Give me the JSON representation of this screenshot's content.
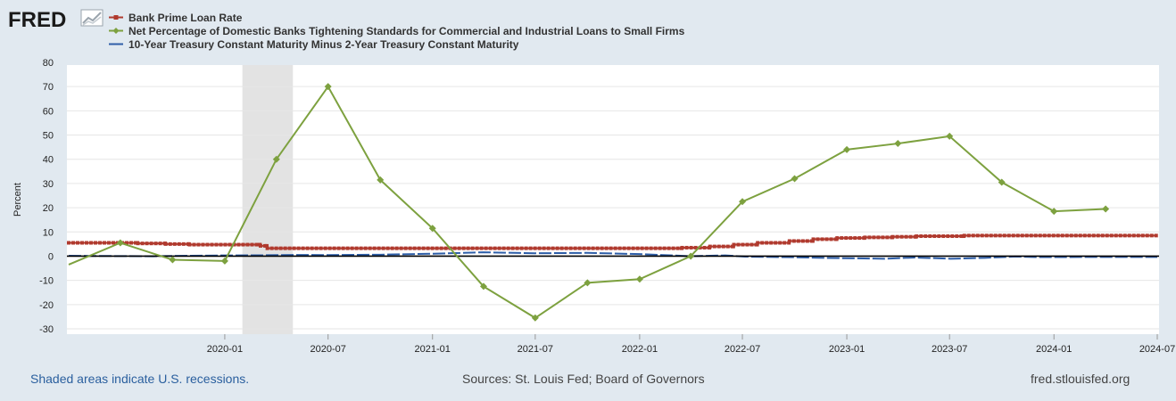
{
  "logo": {
    "text": "FRED"
  },
  "chart_data": {
    "type": "line",
    "title": "",
    "xlabel": "",
    "ylabel": "Percent",
    "ylim": [
      -30,
      80
    ],
    "yticks": [
      -30,
      -20,
      -10,
      0,
      10,
      20,
      30,
      40,
      50,
      60,
      70,
      80
    ],
    "x_range": [
      "2019-04-01",
      "2024-07-01"
    ],
    "xticks": [
      {
        "date": "2020-01-01",
        "label": "2020-01"
      },
      {
        "date": "2020-07-01",
        "label": "2020-07"
      },
      {
        "date": "2021-01-01",
        "label": "2021-01"
      },
      {
        "date": "2021-07-01",
        "label": "2021-07"
      },
      {
        "date": "2022-01-01",
        "label": "2022-01"
      },
      {
        "date": "2022-07-01",
        "label": "2022-07"
      },
      {
        "date": "2023-01-01",
        "label": "2023-01"
      },
      {
        "date": "2023-07-01",
        "label": "2023-07"
      },
      {
        "date": "2024-01-01",
        "label": "2024-01"
      },
      {
        "date": "2024-07-01",
        "label": "2024-07"
      }
    ],
    "recessions": [
      {
        "start": "2020-02-01",
        "end": "2020-04-30"
      }
    ],
    "zero_line": true,
    "series": [
      {
        "name": "Bank Prime Loan Rate",
        "color": "#b03a2e",
        "marker": "square",
        "points": [
          [
            "2019-04-01",
            5.5
          ],
          [
            "2019-07-31",
            5.5
          ],
          [
            "2019-08-01",
            5.25
          ],
          [
            "2019-09-18",
            5.25
          ],
          [
            "2019-09-19",
            5.0
          ],
          [
            "2019-10-30",
            5.0
          ],
          [
            "2019-10-31",
            4.75
          ],
          [
            "2020-03-03",
            4.75
          ],
          [
            "2020-03-04",
            4.25
          ],
          [
            "2020-03-15",
            4.25
          ],
          [
            "2020-03-16",
            3.25
          ],
          [
            "2022-03-16",
            3.25
          ],
          [
            "2022-03-17",
            3.5
          ],
          [
            "2022-05-04",
            3.5
          ],
          [
            "2022-05-05",
            4.0
          ],
          [
            "2022-06-15",
            4.0
          ],
          [
            "2022-06-16",
            4.75
          ],
          [
            "2022-07-27",
            4.75
          ],
          [
            "2022-07-28",
            5.5
          ],
          [
            "2022-09-21",
            5.5
          ],
          [
            "2022-09-22",
            6.25
          ],
          [
            "2022-11-02",
            6.25
          ],
          [
            "2022-11-03",
            7.0
          ],
          [
            "2022-12-14",
            7.0
          ],
          [
            "2022-12-15",
            7.5
          ],
          [
            "2023-02-01",
            7.5
          ],
          [
            "2023-02-02",
            7.75
          ],
          [
            "2023-03-22",
            7.75
          ],
          [
            "2023-03-23",
            8.0
          ],
          [
            "2023-05-03",
            8.0
          ],
          [
            "2023-05-04",
            8.25
          ],
          [
            "2023-07-26",
            8.25
          ],
          [
            "2023-07-27",
            8.5
          ],
          [
            "2024-07-01",
            8.5
          ]
        ]
      },
      {
        "name": "Net Percentage of Domestic Banks Tightening Standards for Commercial and Industrial Loans to Small Firms",
        "color": "#7da13f",
        "marker": "diamond",
        "points": [
          [
            "2019-04-01",
            -3.5
          ],
          [
            "2019-07-01",
            5.5
          ],
          [
            "2019-10-01",
            -1.5
          ],
          [
            "2020-01-01",
            -2.0
          ],
          [
            "2020-04-01",
            40.0
          ],
          [
            "2020-07-01",
            70.0
          ],
          [
            "2020-10-01",
            31.5
          ],
          [
            "2021-01-01",
            11.5
          ],
          [
            "2021-04-01",
            -12.5
          ],
          [
            "2021-07-01",
            -25.5
          ],
          [
            "2021-10-01",
            -11.0
          ],
          [
            "2022-01-01",
            -9.5
          ],
          [
            "2022-04-01",
            0.0
          ],
          [
            "2022-07-01",
            22.5
          ],
          [
            "2022-10-01",
            32.0
          ],
          [
            "2023-01-01",
            44.0
          ],
          [
            "2023-04-01",
            46.5
          ],
          [
            "2023-07-01",
            49.5
          ],
          [
            "2023-10-01",
            30.5
          ],
          [
            "2024-01-01",
            18.5
          ],
          [
            "2024-04-01",
            19.5
          ]
        ]
      },
      {
        "name": "10-Year Treasury Constant Maturity Minus 2-Year Treasury Constant Maturity",
        "color": "#2e5ea8",
        "marker": "none",
        "points": [
          [
            "2019-04-01",
            0.15
          ],
          [
            "2019-08-27",
            -0.04
          ],
          [
            "2019-10-01",
            0.1
          ],
          [
            "2020-01-01",
            0.3
          ],
          [
            "2020-03-01",
            0.35
          ],
          [
            "2020-05-01",
            0.5
          ],
          [
            "2020-07-01",
            0.45
          ],
          [
            "2020-10-01",
            0.6
          ],
          [
            "2021-01-01",
            1.0
          ],
          [
            "2021-03-31",
            1.58
          ],
          [
            "2021-07-01",
            1.2
          ],
          [
            "2021-10-01",
            1.35
          ],
          [
            "2022-01-01",
            0.85
          ],
          [
            "2022-04-01",
            0.0
          ],
          [
            "2022-06-01",
            0.3
          ],
          [
            "2022-07-06",
            -0.2
          ],
          [
            "2022-10-01",
            -0.45
          ],
          [
            "2022-12-01",
            -0.75
          ],
          [
            "2023-03-08",
            -1.07
          ],
          [
            "2023-05-01",
            -0.55
          ],
          [
            "2023-07-03",
            -1.08
          ],
          [
            "2023-09-01",
            -0.7
          ],
          [
            "2023-10-25",
            -0.16
          ],
          [
            "2023-12-01",
            -0.4
          ],
          [
            "2024-03-01",
            -0.35
          ],
          [
            "2024-05-01",
            -0.35
          ],
          [
            "2024-07-01",
            -0.32
          ]
        ]
      }
    ]
  },
  "legend": [
    {
      "label": "Bank Prime Loan Rate",
      "color": "#b03a2e"
    },
    {
      "label": "Net Percentage of Domestic Banks Tightening Standards for Commercial and Industrial Loans to Small Firms",
      "color": "#7da13f"
    },
    {
      "label": "10-Year Treasury Constant Maturity Minus 2-Year Treasury Constant Maturity",
      "color": "#2e5ea8"
    }
  ],
  "footer": {
    "left": "Shaded areas indicate U.S. recessions.",
    "center": "Sources: St. Louis Fed; Board of Governors",
    "right": "fred.stlouisfed.org"
  }
}
